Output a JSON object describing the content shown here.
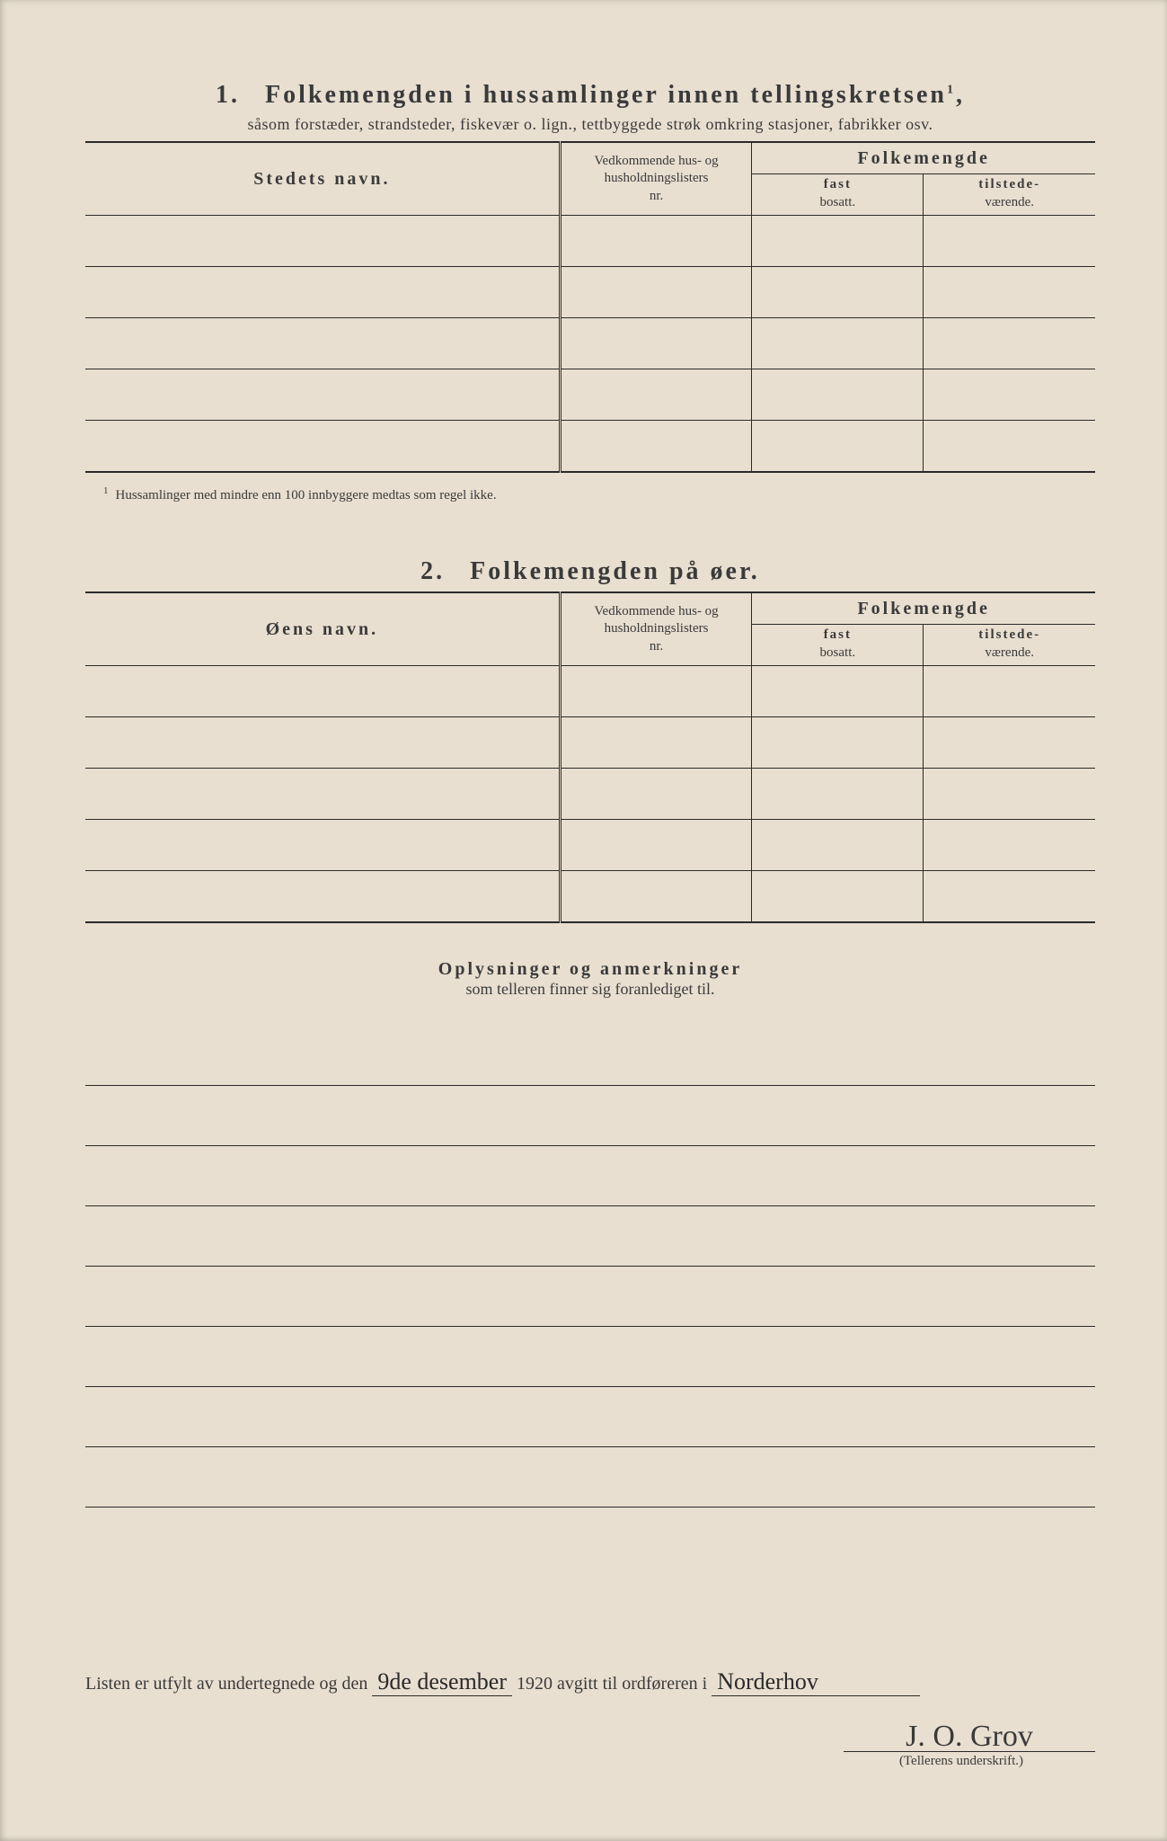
{
  "section1": {
    "number": "1.",
    "title": "Folkemengden i hussamlinger innen tellingskretsen",
    "title_sup": "1",
    "title_comma": ",",
    "subtitle": "såsom forstæder, strandsteder, fiskevær o. lign., tettbyggede strøk omkring stasjoner, fabrikker osv.",
    "col_name": "Stedets navn.",
    "col_ref_line1": "Vedkommende hus- og",
    "col_ref_line2": "husholdningslisters",
    "col_ref_line3": "nr.",
    "col_pop_group": "Folkemengde",
    "col_fast_top": "fast",
    "col_fast_bottom": "bosatt.",
    "col_til_top": "tilstede-",
    "col_til_bottom": "værende.",
    "footnote_sup": "1",
    "footnote": "Hussamlinger med mindre enn 100 innbyggere medtas som regel ikke.",
    "row_count": 5
  },
  "section2": {
    "number": "2.",
    "title": "Folkemengden på øer.",
    "col_name": "Øens navn.",
    "col_ref_line1": "Vedkommende hus- og",
    "col_ref_line2": "husholdningslisters",
    "col_ref_line3": "nr.",
    "col_pop_group": "Folkemengde",
    "col_fast_top": "fast",
    "col_fast_bottom": "bosatt.",
    "col_til_top": "tilstede-",
    "col_til_bottom": "værende.",
    "row_count": 5
  },
  "remarks": {
    "title": "Oplysninger og anmerkninger",
    "subtitle": "som telleren finner sig foranlediget til.",
    "line_count": 8
  },
  "footer": {
    "text1": "Listen er utfylt av undertegnede og den",
    "date_handwritten": "9de desember",
    "year": "1920",
    "text2": "avgitt til ordføreren i",
    "place_handwritten": "Norderhov",
    "signature": "J. O. Grov",
    "sig_label": "(Tellerens underskrift.)"
  },
  "style": {
    "paper_color": "#e8dfd0",
    "ink_color": "#3a3a3a",
    "rule_color": "#2a2a2a"
  }
}
